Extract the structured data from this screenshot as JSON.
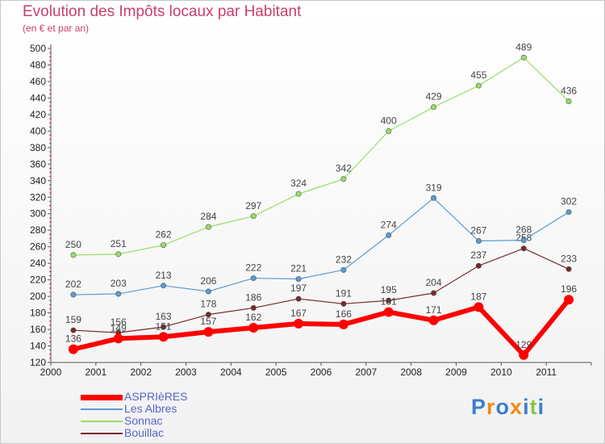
{
  "chart_data": {
    "type": "line",
    "title": "Evolution des Impôts locaux par Habitant",
    "subtitle": "(en € et par an)",
    "x": [
      "2000",
      "2001",
      "2002",
      "2003",
      "2004",
      "2005",
      "2006",
      "2007",
      "2008",
      "2009",
      "2010",
      "2011"
    ],
    "ylim": [
      120,
      500
    ],
    "yticks": [
      120,
      140,
      160,
      180,
      200,
      220,
      240,
      260,
      280,
      300,
      320,
      340,
      360,
      380,
      400,
      420,
      440,
      460,
      480,
      500
    ],
    "grid": false,
    "legend_position": "bottom-left",
    "series": [
      {
        "name": "ASPRIèRES",
        "values": [
          136,
          149,
          151,
          157,
          162,
          167,
          166,
          181,
          171,
          187,
          129,
          196
        ],
        "color": "#ff0000"
      },
      {
        "name": "Les Albres",
        "values": [
          202,
          203,
          213,
          206,
          222,
          221,
          232,
          274,
          319,
          267,
          268,
          302
        ],
        "color": "#5b9bd5"
      },
      {
        "name": "Sonnac",
        "values": [
          250,
          251,
          262,
          284,
          297,
          324,
          342,
          400,
          429,
          455,
          489,
          436
        ],
        "color": "#99dd66"
      },
      {
        "name": "Bouillac",
        "values": [
          159,
          156,
          163,
          178,
          186,
          197,
          191,
          195,
          204,
          237,
          258,
          233
        ],
        "color": "#7a2a2a"
      }
    ]
  },
  "logo": {
    "text": "Proxiti"
  }
}
